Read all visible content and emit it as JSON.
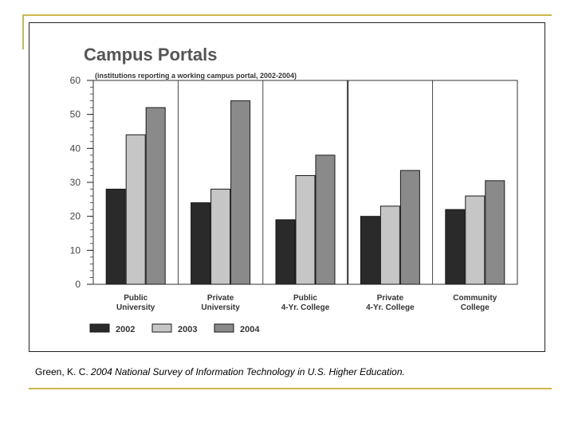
{
  "slide": {
    "caption_prefix": "Green, K. C.",
    "caption_title": "2004 National Survey of Information Technology in U.S. Higher Education."
  },
  "chart_data": {
    "type": "bar",
    "title": "Campus Portals",
    "subtitle": "(institutions reporting a working campus portal, 2002-2004)",
    "categories": [
      [
        "Public",
        "University"
      ],
      [
        "Private",
        "University"
      ],
      [
        "Public",
        "4-Yr. College"
      ],
      [
        "Private",
        "4-Yr. College"
      ],
      [
        "Community",
        "College"
      ]
    ],
    "series": [
      {
        "name": "2002",
        "values": [
          28,
          24,
          19,
          20,
          22
        ]
      },
      {
        "name": "2003",
        "values": [
          44,
          28,
          32,
          23,
          26
        ]
      },
      {
        "name": "2004",
        "values": [
          52,
          54,
          38,
          33.5,
          30.5
        ]
      }
    ],
    "ylim": [
      0,
      60
    ],
    "yticks": [
      0,
      10,
      20,
      30,
      40,
      50,
      60
    ],
    "grid": false,
    "legend_position": "bottom-left",
    "colors": {
      "2002": "#2a2a2a",
      "2003": "#c6c6c6",
      "2004": "#8a8a8a"
    }
  }
}
